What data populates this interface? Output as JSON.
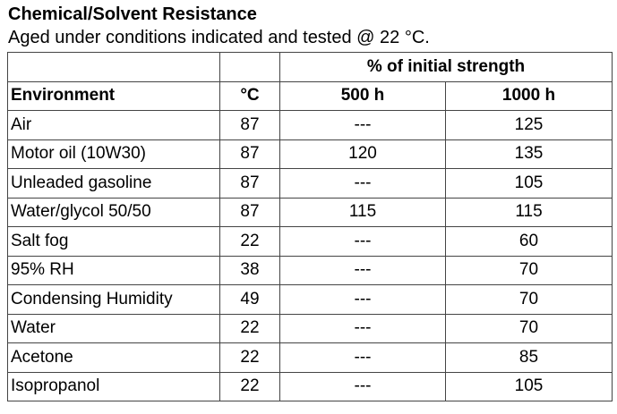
{
  "title": "Chemical/Solvent Resistance",
  "subtitle": "Aged under conditions indicated and tested @ 22 °C.",
  "table": {
    "group_header": "% of initial strength",
    "columns": [
      "Environment",
      "°C",
      "500 h",
      "1000 h"
    ],
    "rows": [
      [
        "Air",
        87,
        "---",
        125
      ],
      [
        "Motor oil (10W30)",
        87,
        120,
        135
      ],
      [
        "Unleaded gasoline",
        87,
        "---",
        105
      ],
      [
        "Water/glycol 50/50",
        87,
        115,
        115
      ],
      [
        "Salt fog",
        22,
        "---",
        60
      ],
      [
        "95% RH",
        38,
        "---",
        70
      ],
      [
        "Condensing Humidity",
        49,
        "---",
        70
      ],
      [
        "Water",
        22,
        "---",
        70
      ],
      [
        "Acetone",
        22,
        "---",
        85
      ],
      [
        "Isopropanol",
        22,
        "---",
        105
      ]
    ]
  }
}
